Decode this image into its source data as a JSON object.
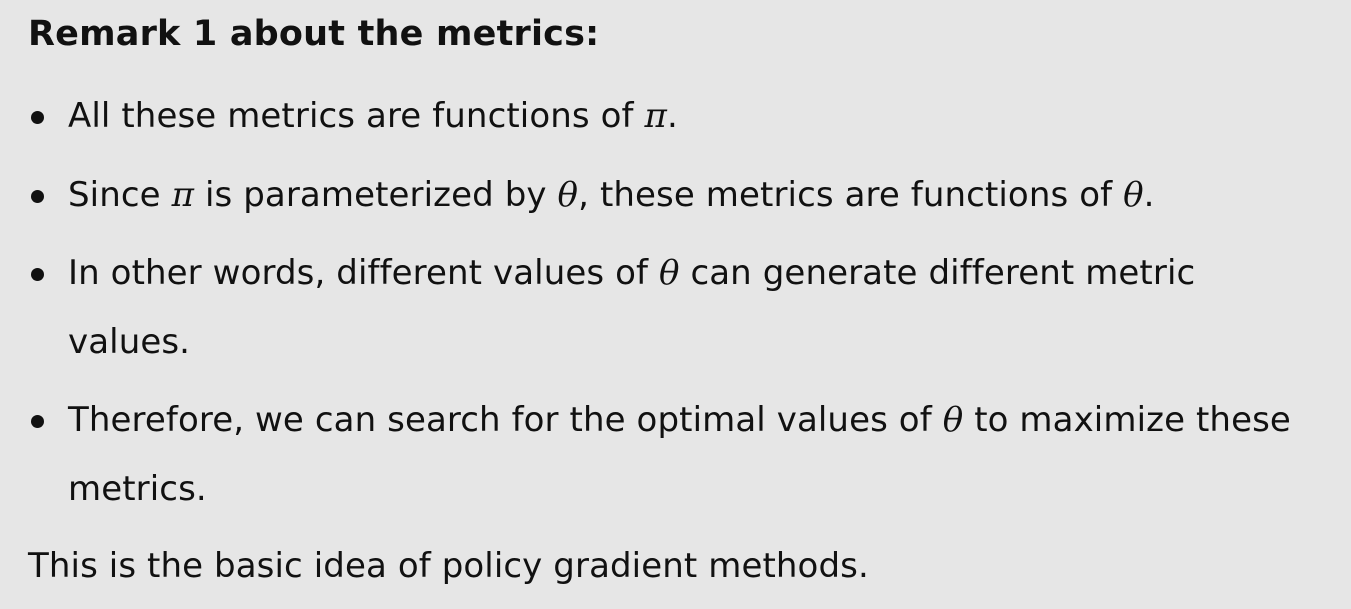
{
  "slide": {
    "heading": "Remark 1 about the metrics:",
    "bullets": [
      {
        "lines": [
          {
            "parts": [
              "All these metrics are functions of ",
              "π",
              "."
            ]
          }
        ]
      },
      {
        "lines": [
          {
            "parts": [
              "Since ",
              "π",
              " is parameterized by ",
              "θ",
              ", these metrics are functions of ",
              "θ",
              "."
            ]
          }
        ]
      },
      {
        "lines": [
          {
            "parts": [
              "In other words, different values of ",
              "θ",
              " can generate different metric"
            ]
          },
          {
            "parts": [
              "values."
            ]
          }
        ]
      },
      {
        "lines": [
          {
            "parts": [
              "Therefore, we can search for the optimal values of ",
              "θ",
              " to maximize these"
            ]
          },
          {
            "parts": [
              "metrics."
            ]
          }
        ]
      }
    ],
    "closing": "This is the basic idea of policy gradient methods."
  }
}
